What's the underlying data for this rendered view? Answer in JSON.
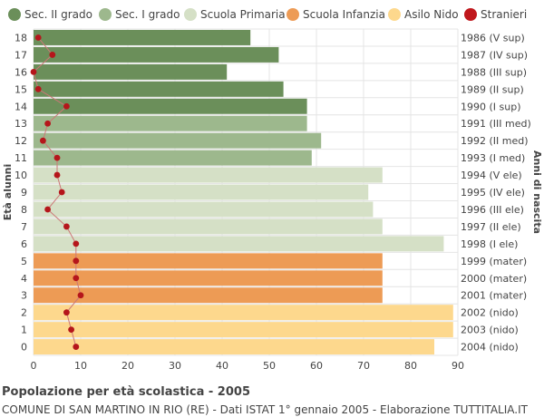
{
  "chart_data": {
    "type": "bar",
    "orientation": "horizontal",
    "title": "Popolazione per età scolastica - 2005",
    "subtitle": "COMUNE DI SAN MARTINO IN RIO (RE) - Dati ISTAT 1° gennaio 2005 - Elaborazione TUTTITALIA.IT",
    "ylabel": "Età alunni",
    "ylabel_right": "Anni di nascita",
    "xlim": [
      0,
      90
    ],
    "x_ticks": [
      0,
      10,
      20,
      30,
      40,
      50,
      60,
      70,
      80,
      90
    ],
    "grid": true,
    "legend_position": "top",
    "legend": [
      {
        "name": "Sec. II grado",
        "color": "#6b8f5a"
      },
      {
        "name": "Sec. I grado",
        "color": "#9db88d"
      },
      {
        "name": "Scuola Primaria",
        "color": "#d5e0c6"
      },
      {
        "name": "Scuola Infanzia",
        "color": "#ed9b55"
      },
      {
        "name": "Asilo Nido",
        "color": "#fdd88d"
      },
      {
        "name": "Stranieri",
        "color": "#c0171c"
      }
    ],
    "categories": [
      "18",
      "17",
      "16",
      "15",
      "14",
      "13",
      "12",
      "11",
      "10",
      "9",
      "8",
      "7",
      "6",
      "5",
      "4",
      "3",
      "2",
      "1",
      "0"
    ],
    "birth_years": [
      "1986 (V sup)",
      "1987 (IV sup)",
      "1988 (III sup)",
      "1989 (II sup)",
      "1990 (I sup)",
      "1991 (III med)",
      "1992 (II med)",
      "1993 (I med)",
      "1994 (V ele)",
      "1995 (IV ele)",
      "1996 (III ele)",
      "1997 (II ele)",
      "1998 (I ele)",
      "1999 (mater)",
      "2000 (mater)",
      "2001 (mater)",
      "2002 (nido)",
      "2003 (nido)",
      "2004 (nido)"
    ],
    "values": [
      46,
      52,
      41,
      53,
      58,
      58,
      61,
      59,
      74,
      71,
      72,
      74,
      87,
      74,
      74,
      74,
      89,
      89,
      85
    ],
    "groups": [
      "Sec. II grado",
      "Sec. II grado",
      "Sec. II grado",
      "Sec. II grado",
      "Sec. II grado",
      "Sec. I grado",
      "Sec. I grado",
      "Sec. I grado",
      "Scuola Primaria",
      "Scuola Primaria",
      "Scuola Primaria",
      "Scuola Primaria",
      "Scuola Primaria",
      "Scuola Infanzia",
      "Scuola Infanzia",
      "Scuola Infanzia",
      "Asilo Nido",
      "Asilo Nido",
      "Asilo Nido"
    ],
    "stranieri": [
      1,
      4,
      0,
      1,
      7,
      3,
      2,
      5,
      5,
      6,
      3,
      7,
      9,
      9,
      9,
      10,
      7,
      8,
      9
    ]
  }
}
